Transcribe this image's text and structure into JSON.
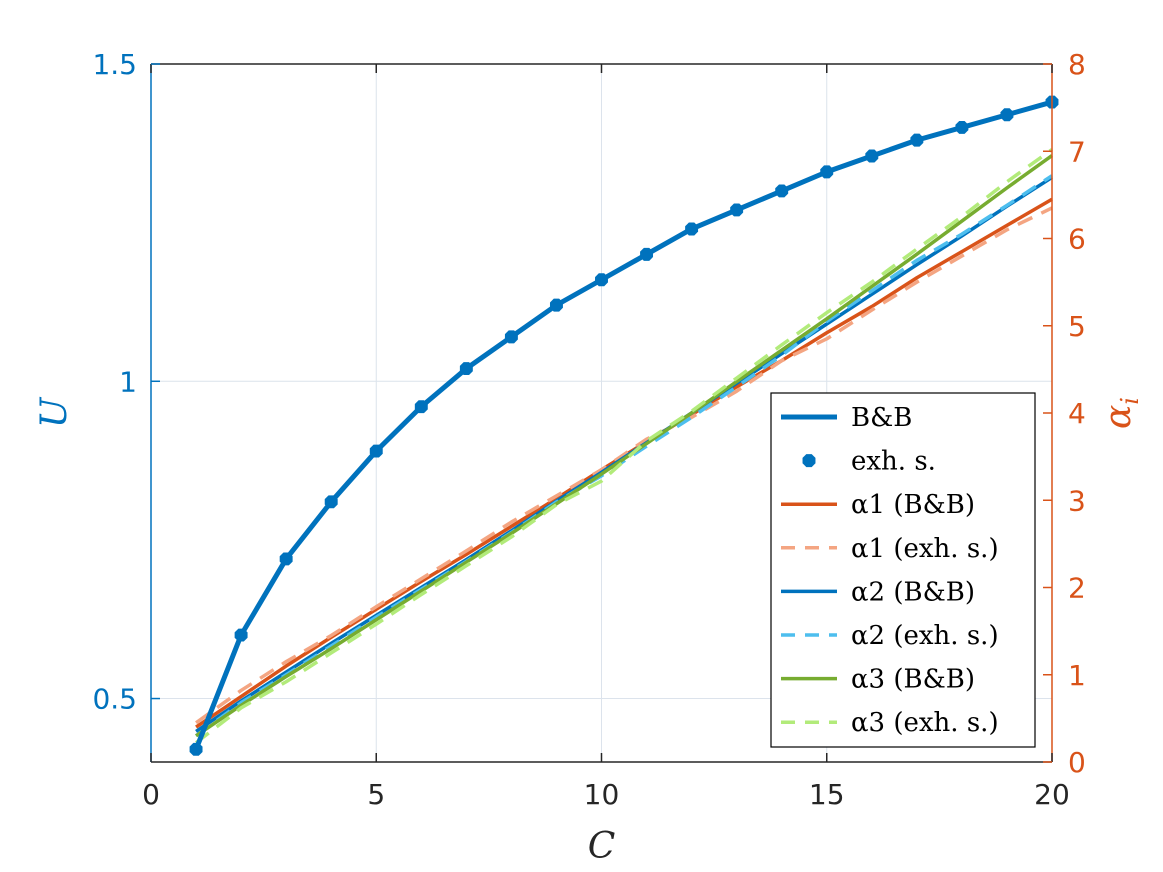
{
  "colors": {
    "left_axis": "#0072BD",
    "right_axis": "#D95319",
    "alpha1": "#D95319",
    "alpha1_exh": "#F4A582",
    "alpha2": "#0072BD",
    "alpha2_exh": "#4DBEEE",
    "alpha3": "#77AC30",
    "alpha3_exh": "#B2EB7A",
    "grid": "#DCE3EC",
    "axis_black": "#262626"
  },
  "chart_data": {
    "type": "line",
    "xlabel": "C",
    "ylabel_left": "U",
    "ylabel_right_base": "α",
    "ylabel_right_sub": "i",
    "xlim": [
      0,
      20
    ],
    "ylim_left": [
      0.4,
      1.5
    ],
    "ylim_right": [
      0,
      8
    ],
    "xticks": [
      "0",
      "5",
      "10",
      "15",
      "20"
    ],
    "yticks_left": [
      "0.5",
      "1",
      "1.5"
    ],
    "yticks_right": [
      "0",
      "1",
      "2",
      "3",
      "4",
      "5",
      "6",
      "7",
      "8"
    ],
    "grid": true,
    "legend_position": "lower-right",
    "x": [
      1,
      2,
      3,
      4,
      5,
      6,
      7,
      8,
      9,
      10,
      11,
      12,
      13,
      14,
      15,
      16,
      17,
      18,
      19,
      20
    ],
    "series": [
      {
        "name": "B&B",
        "axis": "left",
        "style": "solid",
        "values": [
          0.42,
          0.6,
          0.72,
          0.81,
          0.89,
          0.96,
          1.02,
          1.07,
          1.12,
          1.16,
          1.2,
          1.24,
          1.27,
          1.3,
          1.33,
          1.355,
          1.38,
          1.4,
          1.42,
          1.44
        ]
      },
      {
        "name": "exh. s.",
        "axis": "left",
        "style": "markers",
        "values": [
          0.42,
          0.6,
          0.72,
          0.81,
          0.89,
          0.96,
          1.02,
          1.07,
          1.12,
          1.16,
          1.2,
          1.24,
          1.27,
          1.3,
          1.33,
          1.355,
          1.38,
          1.4,
          1.42,
          1.44
        ]
      },
      {
        "name": "α1 (B&B)",
        "axis": "right",
        "style": "solid",
        "values": [
          0.4,
          0.75,
          1.1,
          1.43,
          1.75,
          2.07,
          2.38,
          2.7,
          3.02,
          3.35,
          3.67,
          3.98,
          4.3,
          4.6,
          4.92,
          5.22,
          5.55,
          5.85,
          6.15,
          6.45
        ]
      },
      {
        "name": "α1 (exh. s.)",
        "axis": "right",
        "style": "dashed",
        "values": [
          0.45,
          0.82,
          1.15,
          1.45,
          1.78,
          2.1,
          2.42,
          2.75,
          3.05,
          3.35,
          3.7,
          3.95,
          4.25,
          4.6,
          4.85,
          5.18,
          5.5,
          5.8,
          6.1,
          6.35
        ]
      },
      {
        "name": "α2 (B&B)",
        "axis": "right",
        "style": "solid",
        "values": [
          0.35,
          0.7,
          1.03,
          1.36,
          1.68,
          2.0,
          2.32,
          2.65,
          2.99,
          3.32,
          3.66,
          4.0,
          4.34,
          4.68,
          5.02,
          5.36,
          5.7,
          6.03,
          6.37,
          6.7
        ]
      },
      {
        "name": "α2 (exh. s.)",
        "axis": "right",
        "style": "dashed",
        "values": [
          0.3,
          0.68,
          1.0,
          1.33,
          1.66,
          1.98,
          2.3,
          2.63,
          2.98,
          3.28,
          3.62,
          3.95,
          4.3,
          4.66,
          5.05,
          5.4,
          5.75,
          6.05,
          6.38,
          6.72
        ]
      },
      {
        "name": "α3 (B&B)",
        "axis": "right",
        "style": "solid",
        "values": [
          0.3,
          0.65,
          0.98,
          1.3,
          1.63,
          1.96,
          2.29,
          2.62,
          2.96,
          3.3,
          3.65,
          4.0,
          4.36,
          4.72,
          5.08,
          5.45,
          5.82,
          6.2,
          6.58,
          6.95
        ]
      },
      {
        "name": "α3 (exh. s.)",
        "axis": "right",
        "style": "dashed",
        "values": [
          0.22,
          0.62,
          0.92,
          1.25,
          1.58,
          1.92,
          2.25,
          2.58,
          2.95,
          3.22,
          3.68,
          4.02,
          4.4,
          4.78,
          5.15,
          5.5,
          5.88,
          6.25,
          6.65,
          7.02
        ]
      }
    ]
  }
}
